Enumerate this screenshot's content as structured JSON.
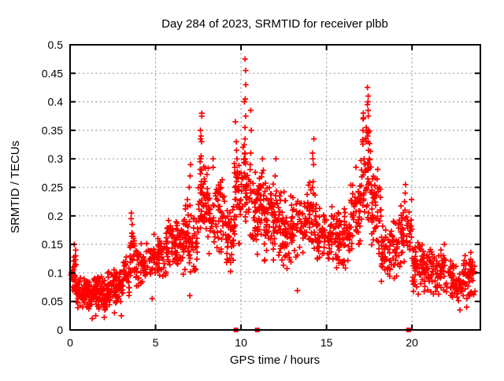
{
  "chart_data": {
    "type": "scatter",
    "title": "Day 284 of 2023, SRMTID for receiver plbb",
    "xlabel": "GPS time / hours",
    "ylabel": "SRMTID / TECUs",
    "xlim": [
      0,
      24
    ],
    "ylim": [
      0,
      0.5
    ],
    "xtick_values": [
      0,
      5,
      10,
      15,
      20
    ],
    "xtick_labels": [
      "0",
      "5",
      "10",
      "15",
      "20"
    ],
    "ytick_values": [
      0,
      0.05,
      0.1,
      0.15,
      0.2,
      0.25,
      0.3,
      0.35,
      0.4,
      0.45,
      0.5
    ],
    "ytick_labels": [
      "0",
      "0.05",
      "0.1",
      "0.15",
      "0.2",
      "0.25",
      "0.3",
      "0.35",
      "0.4",
      "0.45",
      "0.5"
    ],
    "grid": true,
    "legend": "none",
    "marker": "plus",
    "marker_color": "#ff0000",
    "grid_color": "#a0a0a0",
    "border_color": "#000000",
    "seed": 7,
    "zero_square_markers_x": [
      9.7,
      10.95,
      19.8
    ],
    "spike_columns": [
      {
        "x": 0.3,
        "ys": [
          0.15,
          0.14,
          0.13
        ]
      },
      {
        "x": 3.6,
        "ys": [
          0.205,
          0.195,
          0.185,
          0.17
        ]
      },
      {
        "x": 7.0,
        "ys": [
          0.29,
          0.27,
          0.25
        ]
      },
      {
        "x": 7.65,
        "ys": [
          0.38,
          0.375,
          0.35,
          0.34,
          0.335,
          0.33,
          0.305,
          0.3,
          0.3,
          0.295,
          0.28,
          0.26,
          0.25,
          0.24
        ]
      },
      {
        "x": 8.4,
        "ys": [
          0.3,
          0.285
        ]
      },
      {
        "x": 9.7,
        "ys": [
          0.365,
          0.33,
          0.315,
          0.3,
          0.285,
          0.26,
          0.25
        ]
      },
      {
        "x": 10.25,
        "ys": [
          0.475,
          0.455,
          0.43,
          0.405,
          0.4,
          0.375,
          0.355,
          0.335,
          0.31,
          0.295,
          0.27,
          0.245,
          0.22
        ]
      },
      {
        "x": 10.55,
        "ys": [
          0.385,
          0.35,
          0.31,
          0.29,
          0.26
        ]
      },
      {
        "x": 11.3,
        "ys": [
          0.3,
          0.28
        ]
      },
      {
        "x": 12.0,
        "ys": [
          0.3,
          0.27
        ]
      },
      {
        "x": 14.2,
        "ys": [
          0.335,
          0.31,
          0.3,
          0.29,
          0.26,
          0.25,
          0.22
        ]
      },
      {
        "x": 17.15,
        "ys": [
          0.37,
          0.35,
          0.33,
          0.3
        ]
      },
      {
        "x": 17.45,
        "ys": [
          0.425,
          0.41,
          0.4,
          0.395,
          0.385,
          0.375,
          0.35,
          0.34,
          0.33,
          0.315,
          0.3,
          0.29,
          0.28,
          0.265
        ]
      },
      {
        "x": 19.6,
        "ys": [
          0.255,
          0.24,
          0.225,
          0.21
        ]
      }
    ],
    "outlier_points": [
      [
        1.3,
        0.02
      ],
      [
        1.5,
        0.025
      ],
      [
        2.0,
        0.022
      ],
      [
        2.6,
        0.03
      ],
      [
        3.0,
        0.025
      ],
      [
        4.8,
        0.055
      ],
      [
        7.0,
        0.06
      ],
      [
        13.3,
        0.069
      ],
      [
        22.8,
        0.035
      ],
      [
        23.2,
        0.04
      ]
    ],
    "cloud_bands": [
      [
        0.05,
        0.35,
        0.06,
        0.13,
        28
      ],
      [
        0.3,
        1.2,
        0.035,
        0.095,
        85
      ],
      [
        1.2,
        2.2,
        0.03,
        0.095,
        105
      ],
      [
        2.2,
        3.1,
        0.04,
        0.11,
        85
      ],
      [
        3.1,
        3.55,
        0.055,
        0.14,
        30
      ],
      [
        3.5,
        3.75,
        0.1,
        0.2,
        20
      ],
      [
        3.75,
        4.6,
        0.07,
        0.16,
        55
      ],
      [
        4.6,
        5.6,
        0.085,
        0.175,
        70
      ],
      [
        5.6,
        6.6,
        0.1,
        0.21,
        75
      ],
      [
        6.6,
        7.5,
        0.09,
        0.23,
        70
      ],
      [
        7.5,
        8.1,
        0.14,
        0.31,
        55
      ],
      [
        8.1,
        9.0,
        0.13,
        0.27,
        60
      ],
      [
        9.0,
        9.6,
        0.1,
        0.26,
        50
      ],
      [
        9.6,
        10.1,
        0.14,
        0.32,
        40
      ],
      [
        10.1,
        10.5,
        0.17,
        0.34,
        32
      ],
      [
        10.5,
        11.3,
        0.13,
        0.3,
        70
      ],
      [
        11.3,
        12.3,
        0.12,
        0.27,
        85
      ],
      [
        12.3,
        13.3,
        0.1,
        0.25,
        80
      ],
      [
        13.3,
        14.4,
        0.12,
        0.27,
        75
      ],
      [
        14.4,
        15.5,
        0.11,
        0.22,
        75
      ],
      [
        15.5,
        16.4,
        0.1,
        0.22,
        70
      ],
      [
        16.4,
        17.0,
        0.13,
        0.3,
        50
      ],
      [
        17.0,
        17.6,
        0.17,
        0.4,
        50
      ],
      [
        17.6,
        18.2,
        0.12,
        0.3,
        50
      ],
      [
        18.2,
        19.2,
        0.08,
        0.2,
        70
      ],
      [
        19.2,
        20.0,
        0.1,
        0.24,
        55
      ],
      [
        20.0,
        21.0,
        0.06,
        0.16,
        75
      ],
      [
        21.0,
        22.0,
        0.05,
        0.155,
        70
      ],
      [
        22.0,
        23.0,
        0.04,
        0.125,
        65
      ],
      [
        23.0,
        23.7,
        0.04,
        0.145,
        55
      ]
    ]
  }
}
